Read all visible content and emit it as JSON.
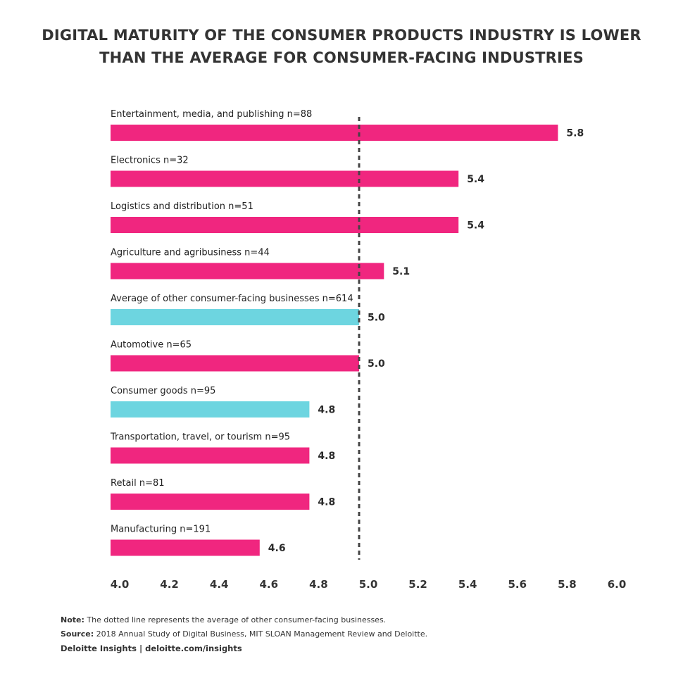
{
  "title": {
    "line1": "DIGITAL MATURITY OF THE CONSUMER PRODUCTS INDUSTRY IS LOWER",
    "line2": "THAN THE AVERAGE FOR CONSUMER-FACING INDUSTRIES"
  },
  "chart_data": {
    "type": "bar",
    "orientation": "horizontal",
    "title": "DIGITAL MATURITY OF THE CONSUMER PRODUCTS INDUSTRY IS LOWER THAN THE AVERAGE FOR CONSUMER-FACING INDUSTRIES",
    "categories": [
      "Entertainment, media, and publishing n=88",
      "Electronics n=32",
      "Logistics and distribution n=51",
      "Agriculture and agribusiness n=44",
      "Average of other consumer-facing businesses n=614",
      "Automotive n=65",
      "Consumer goods n=95",
      "Transportation, travel, or tourism n=95",
      "Retail n=81",
      "Manufacturing n=191"
    ],
    "values": [
      5.8,
      5.4,
      5.4,
      5.1,
      5.0,
      5.0,
      4.8,
      4.8,
      4.8,
      4.6
    ],
    "value_labels": [
      "5.8",
      "5.4",
      "5.4",
      "5.1",
      "5.0",
      "5.0",
      "4.8",
      "4.8",
      "4.8",
      "4.6"
    ],
    "highlight": [
      false,
      false,
      false,
      false,
      true,
      false,
      true,
      false,
      false,
      false
    ],
    "xlim": [
      4.0,
      6.0
    ],
    "xticks": [
      "4.0",
      "4.2",
      "4.4",
      "4.6",
      "4.8",
      "5.0",
      "5.2",
      "5.4",
      "5.6",
      "5.8",
      "6.0"
    ],
    "reference_line": 5.0,
    "reference_line_style": "dotted",
    "grid": false,
    "xlabel": "",
    "ylabel": ""
  },
  "colors": {
    "primary_bar": "#f0267f",
    "highlight_bar": "#6dd5e0",
    "reference_line": "#444444",
    "text": "#333333"
  },
  "notes": {
    "note_label": "Note:",
    "note_text": " The dotted line represents the average of other consumer-facing businesses.",
    "source_label": "Source:",
    "source_text": " 2018 Annual Study of Digital Business, MIT SLOAN Management Review and Deloitte.",
    "brand": "Deloitte Insights | deloitte.com/insights"
  }
}
